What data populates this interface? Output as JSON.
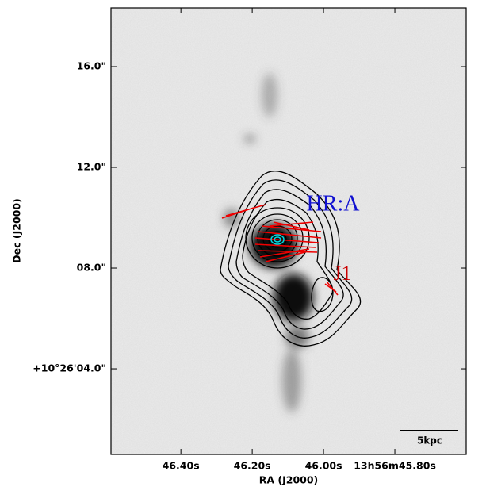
{
  "chart_data": {
    "type": "image",
    "xlabel": "RA (J2000)",
    "ylabel": "Dec (J2000)",
    "xlim": [
      46.596,
      45.6
    ],
    "ylim": [
      0.6,
      18.33
    ],
    "xticks": [
      {
        "value": 46.4,
        "label": "46.40s"
      },
      {
        "value": 46.2,
        "label": "46.20s"
      },
      {
        "value": 46.0,
        "label": "46.00s"
      },
      {
        "value": 45.8,
        "label": "13h56m45.80s"
      }
    ],
    "yticks": [
      {
        "value": 16,
        "label": "16.0\""
      },
      {
        "value": 12,
        "label": "12.0\""
      },
      {
        "value": 8,
        "label": "08.0\""
      },
      {
        "value": 4,
        "label": "+10°26'04.0\""
      }
    ],
    "annotations": [
      "HR:A",
      "J1",
      "5kpc"
    ]
  }
}
